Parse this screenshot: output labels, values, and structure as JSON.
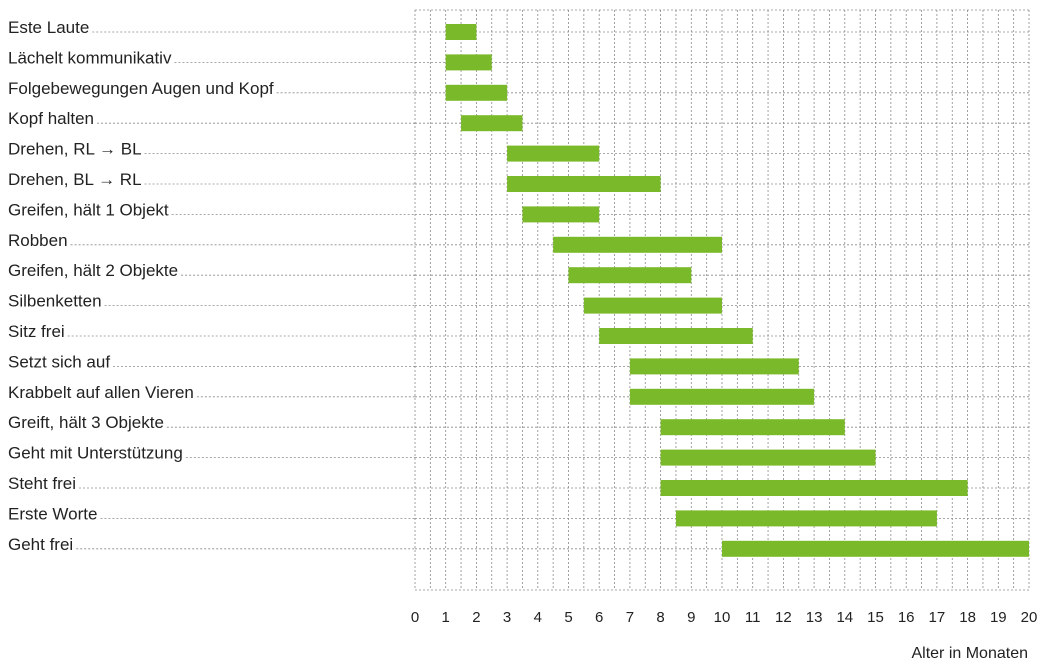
{
  "chart_data": {
    "type": "bar",
    "orientation": "horizontal-range",
    "xlabel": "Alter in Monaten",
    "xlim": [
      0,
      20
    ],
    "xticks": [
      0,
      1,
      2,
      3,
      4,
      5,
      6,
      7,
      8,
      9,
      10,
      11,
      12,
      13,
      14,
      15,
      16,
      17,
      18,
      19,
      20
    ],
    "minor_grid_step": 0.5,
    "grid": true,
    "bar_color": "#7ab929",
    "grid_color": "#8a8a8a",
    "categories": [
      "Este Laute",
      "Lächelt kommunikativ",
      "Folgebewegungen Augen und Kopf",
      "Kopf halten",
      "Drehen, RL → BL",
      "Drehen, BL → RL",
      "Greifen, hält 1 Objekt",
      "Robben",
      "Greifen, hält 2 Objekte",
      "Silbenketten",
      "Sitz frei",
      "Setzt sich auf",
      "Krabbelt auf allen Vieren",
      "Greift, hält 3 Objekte",
      "Geht mit Unterstützung",
      "Steht frei",
      "Erste Worte",
      "Geht frei"
    ],
    "ranges": [
      [
        1,
        2
      ],
      [
        1,
        2.5
      ],
      [
        1,
        3
      ],
      [
        1.5,
        3.5
      ],
      [
        3,
        6
      ],
      [
        3,
        8
      ],
      [
        3.5,
        6
      ],
      [
        4.5,
        10
      ],
      [
        5,
        9
      ],
      [
        5.5,
        10
      ],
      [
        6,
        11
      ],
      [
        7,
        12.5
      ],
      [
        7,
        13
      ],
      [
        8,
        14
      ],
      [
        8,
        15
      ],
      [
        8,
        18
      ],
      [
        8.5,
        17
      ],
      [
        10,
        20
      ]
    ]
  }
}
